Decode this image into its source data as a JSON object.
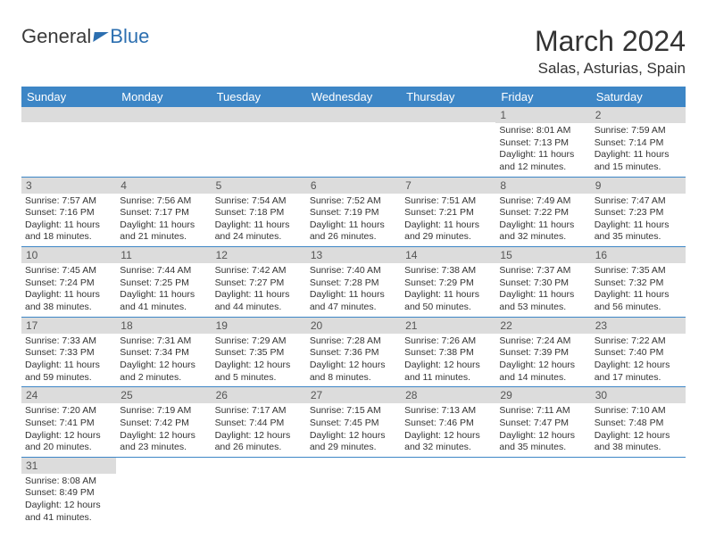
{
  "logo": {
    "general": "General",
    "blue": "Blue"
  },
  "title": "March 2024",
  "subtitle": "Salas, Asturias, Spain",
  "theme": {
    "header_bg": "#3d86c6",
    "header_fg": "#ffffff",
    "daynum_bg": "#dcdcdc",
    "rule_color": "#3d86c6",
    "text_color": "#333333"
  },
  "day_headers": [
    "Sunday",
    "Monday",
    "Tuesday",
    "Wednesday",
    "Thursday",
    "Friday",
    "Saturday"
  ],
  "weeks": [
    [
      null,
      null,
      null,
      null,
      null,
      {
        "num": "1",
        "sunrise": "8:01 AM",
        "sunset": "7:13 PM",
        "dh": "11",
        "dm": "12"
      },
      {
        "num": "2",
        "sunrise": "7:59 AM",
        "sunset": "7:14 PM",
        "dh": "11",
        "dm": "15"
      }
    ],
    [
      {
        "num": "3",
        "sunrise": "7:57 AM",
        "sunset": "7:16 PM",
        "dh": "11",
        "dm": "18"
      },
      {
        "num": "4",
        "sunrise": "7:56 AM",
        "sunset": "7:17 PM",
        "dh": "11",
        "dm": "21"
      },
      {
        "num": "5",
        "sunrise": "7:54 AM",
        "sunset": "7:18 PM",
        "dh": "11",
        "dm": "24"
      },
      {
        "num": "6",
        "sunrise": "7:52 AM",
        "sunset": "7:19 PM",
        "dh": "11",
        "dm": "26"
      },
      {
        "num": "7",
        "sunrise": "7:51 AM",
        "sunset": "7:21 PM",
        "dh": "11",
        "dm": "29"
      },
      {
        "num": "8",
        "sunrise": "7:49 AM",
        "sunset": "7:22 PM",
        "dh": "11",
        "dm": "32"
      },
      {
        "num": "9",
        "sunrise": "7:47 AM",
        "sunset": "7:23 PM",
        "dh": "11",
        "dm": "35"
      }
    ],
    [
      {
        "num": "10",
        "sunrise": "7:45 AM",
        "sunset": "7:24 PM",
        "dh": "11",
        "dm": "38"
      },
      {
        "num": "11",
        "sunrise": "7:44 AM",
        "sunset": "7:25 PM",
        "dh": "11",
        "dm": "41"
      },
      {
        "num": "12",
        "sunrise": "7:42 AM",
        "sunset": "7:27 PM",
        "dh": "11",
        "dm": "44"
      },
      {
        "num": "13",
        "sunrise": "7:40 AM",
        "sunset": "7:28 PM",
        "dh": "11",
        "dm": "47"
      },
      {
        "num": "14",
        "sunrise": "7:38 AM",
        "sunset": "7:29 PM",
        "dh": "11",
        "dm": "50"
      },
      {
        "num": "15",
        "sunrise": "7:37 AM",
        "sunset": "7:30 PM",
        "dh": "11",
        "dm": "53"
      },
      {
        "num": "16",
        "sunrise": "7:35 AM",
        "sunset": "7:32 PM",
        "dh": "11",
        "dm": "56"
      }
    ],
    [
      {
        "num": "17",
        "sunrise": "7:33 AM",
        "sunset": "7:33 PM",
        "dh": "11",
        "dm": "59"
      },
      {
        "num": "18",
        "sunrise": "7:31 AM",
        "sunset": "7:34 PM",
        "dh": "12",
        "dm": "2"
      },
      {
        "num": "19",
        "sunrise": "7:29 AM",
        "sunset": "7:35 PM",
        "dh": "12",
        "dm": "5"
      },
      {
        "num": "20",
        "sunrise": "7:28 AM",
        "sunset": "7:36 PM",
        "dh": "12",
        "dm": "8"
      },
      {
        "num": "21",
        "sunrise": "7:26 AM",
        "sunset": "7:38 PM",
        "dh": "12",
        "dm": "11"
      },
      {
        "num": "22",
        "sunrise": "7:24 AM",
        "sunset": "7:39 PM",
        "dh": "12",
        "dm": "14"
      },
      {
        "num": "23",
        "sunrise": "7:22 AM",
        "sunset": "7:40 PM",
        "dh": "12",
        "dm": "17"
      }
    ],
    [
      {
        "num": "24",
        "sunrise": "7:20 AM",
        "sunset": "7:41 PM",
        "dh": "12",
        "dm": "20"
      },
      {
        "num": "25",
        "sunrise": "7:19 AM",
        "sunset": "7:42 PM",
        "dh": "12",
        "dm": "23"
      },
      {
        "num": "26",
        "sunrise": "7:17 AM",
        "sunset": "7:44 PM",
        "dh": "12",
        "dm": "26"
      },
      {
        "num": "27",
        "sunrise": "7:15 AM",
        "sunset": "7:45 PM",
        "dh": "12",
        "dm": "29"
      },
      {
        "num": "28",
        "sunrise": "7:13 AM",
        "sunset": "7:46 PM",
        "dh": "12",
        "dm": "32"
      },
      {
        "num": "29",
        "sunrise": "7:11 AM",
        "sunset": "7:47 PM",
        "dh": "12",
        "dm": "35"
      },
      {
        "num": "30",
        "sunrise": "7:10 AM",
        "sunset": "7:48 PM",
        "dh": "12",
        "dm": "38"
      }
    ],
    [
      {
        "num": "31",
        "sunrise": "8:08 AM",
        "sunset": "8:49 PM",
        "dh": "12",
        "dm": "41"
      },
      null,
      null,
      null,
      null,
      null,
      null
    ]
  ],
  "labels": {
    "sunrise": "Sunrise: ",
    "sunset": "Sunset: ",
    "daylight_tpl": "Daylight: {h} hours and {m} minutes."
  }
}
